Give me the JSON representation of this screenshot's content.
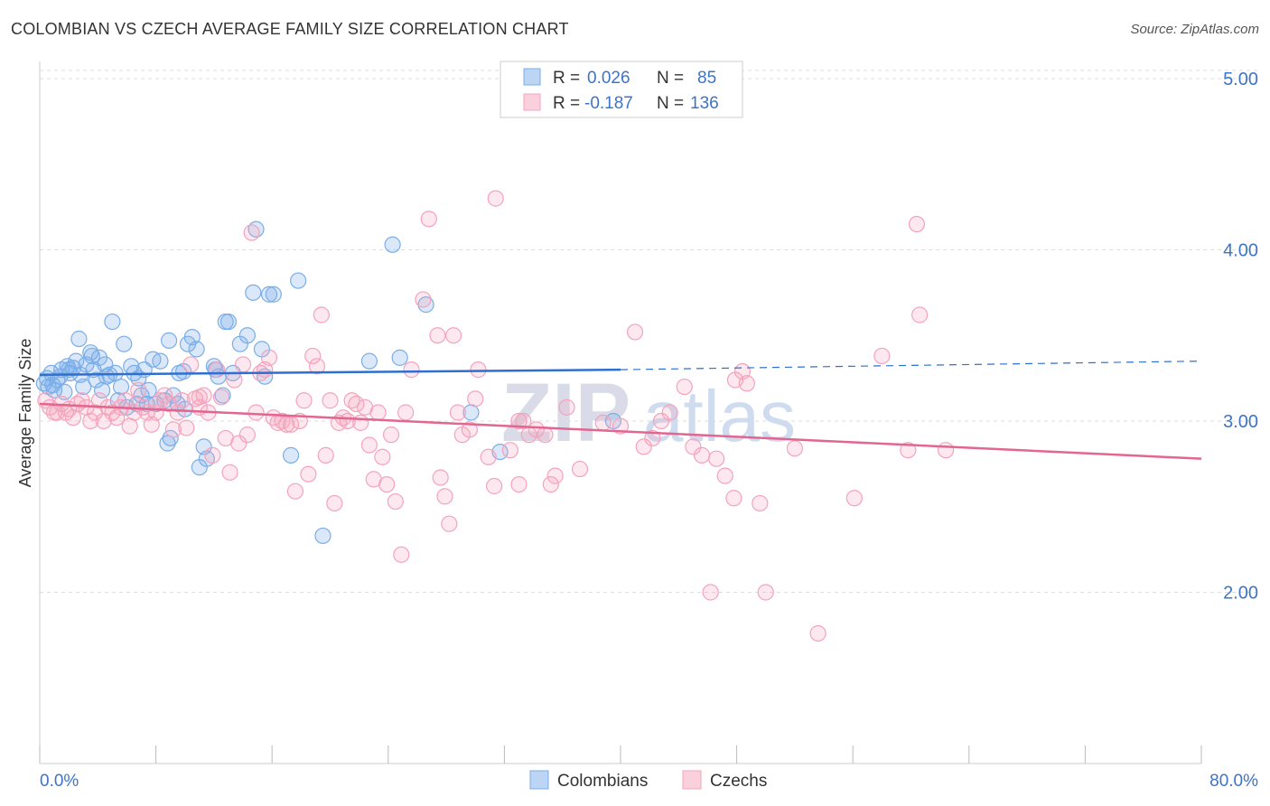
{
  "title": "COLOMBIAN VS CZECH AVERAGE FAMILY SIZE CORRELATION CHART",
  "source": "Source: ZipAtlas.com",
  "chart_data": {
    "type": "scatter",
    "ylabel": "Average Family Size",
    "xlim": [
      0,
      80
    ],
    "ylim": [
      1.0,
      5.1
    ],
    "x_tick_labels": [
      "0.0%",
      "80.0%"
    ],
    "y_ticks": [
      2.0,
      3.0,
      4.0,
      5.0
    ],
    "y_tick_labels": [
      "2.00",
      "3.00",
      "4.00",
      "5.00"
    ],
    "grid": true,
    "watermark": "ZIPatlas",
    "legend_stats": [
      {
        "r_label": "R =",
        "r": "0.026",
        "n_label": "N =",
        "n": "85"
      },
      {
        "r_label": "R =",
        "r": "-0.187",
        "n_label": "N =",
        "n": "136"
      }
    ],
    "series": [
      {
        "name": "Colombians",
        "color": "#7aaee8",
        "line_color": "#2f6fcf",
        "trend": {
          "x0": 0,
          "y0": 3.27,
          "x1": 40,
          "y1": 3.3,
          "dash_to_x": 80,
          "dash_to_y": 3.35
        },
        "points": [
          [
            0.3,
            3.22
          ],
          [
            0.5,
            3.25
          ],
          [
            0.6,
            3.2
          ],
          [
            0.8,
            3.28
          ],
          [
            1.0,
            3.18
          ],
          [
            1.2,
            3.24
          ],
          [
            1.5,
            3.3
          ],
          [
            1.7,
            3.17
          ],
          [
            1.9,
            3.32
          ],
          [
            2.1,
            3.28
          ],
          [
            2.3,
            3.31
          ],
          [
            2.5,
            3.35
          ],
          [
            2.7,
            3.48
          ],
          [
            2.8,
            3.27
          ],
          [
            3.0,
            3.2
          ],
          [
            3.2,
            3.33
          ],
          [
            3.5,
            3.4
          ],
          [
            3.7,
            3.3
          ],
          [
            3.9,
            3.24
          ],
          [
            4.1,
            3.37
          ],
          [
            4.3,
            3.18
          ],
          [
            4.5,
            3.33
          ],
          [
            4.8,
            3.27
          ],
          [
            5.0,
            3.58
          ],
          [
            5.2,
            3.28
          ],
          [
            5.4,
            3.12
          ],
          [
            5.6,
            3.2
          ],
          [
            5.8,
            3.45
          ],
          [
            6.0,
            3.08
          ],
          [
            6.3,
            3.32
          ],
          [
            6.5,
            3.28
          ],
          [
            6.8,
            3.25
          ],
          [
            7.0,
            3.15
          ],
          [
            7.2,
            3.3
          ],
          [
            7.5,
            3.18
          ],
          [
            7.8,
            3.36
          ],
          [
            8.0,
            3.1
          ],
          [
            8.3,
            3.35
          ],
          [
            8.6,
            3.12
          ],
          [
            8.9,
            3.47
          ],
          [
            9.2,
            3.15
          ],
          [
            9.6,
            3.28
          ],
          [
            9.9,
            3.29
          ],
          [
            10.2,
            3.45
          ],
          [
            10.5,
            3.49
          ],
          [
            10.8,
            3.42
          ],
          [
            11.0,
            2.73
          ],
          [
            11.3,
            2.85
          ],
          [
            11.5,
            2.78
          ],
          [
            12.0,
            3.32
          ],
          [
            12.3,
            3.26
          ],
          [
            12.6,
            3.15
          ],
          [
            12.8,
            3.58
          ],
          [
            13.0,
            3.58
          ],
          [
            13.3,
            3.28
          ],
          [
            13.8,
            3.45
          ],
          [
            14.3,
            3.5
          ],
          [
            14.7,
            3.75
          ],
          [
            14.9,
            4.12
          ],
          [
            15.3,
            3.42
          ],
          [
            15.5,
            3.26
          ],
          [
            15.8,
            3.74
          ],
          [
            16.1,
            3.74
          ],
          [
            17.3,
            2.8
          ],
          [
            17.8,
            3.82
          ],
          [
            19.5,
            2.33
          ],
          [
            22.7,
            3.35
          ],
          [
            24.3,
            4.03
          ],
          [
            24.8,
            3.37
          ],
          [
            26.6,
            3.68
          ],
          [
            29.7,
            3.05
          ],
          [
            31.7,
            2.82
          ],
          [
            39.5,
            3.0
          ],
          [
            9.0,
            2.9
          ],
          [
            8.8,
            2.87
          ],
          [
            10.0,
            3.07
          ],
          [
            6.7,
            3.1
          ],
          [
            3.6,
            3.38
          ],
          [
            1.4,
            3.26
          ],
          [
            2.0,
            3.3
          ],
          [
            4.6,
            3.26
          ],
          [
            7.4,
            3.1
          ],
          [
            12.1,
            3.3
          ],
          [
            0.9,
            3.21
          ],
          [
            9.5,
            3.1
          ]
        ]
      },
      {
        "name": "Czechs",
        "color": "#f4a3bd",
        "line_color": "#e2668f",
        "trend": {
          "x0": 0,
          "y0": 3.1,
          "x1": 80,
          "y1": 2.78
        },
        "points": [
          [
            0.4,
            3.12
          ],
          [
            0.7,
            3.08
          ],
          [
            1.0,
            3.05
          ],
          [
            1.2,
            3.05
          ],
          [
            1.5,
            3.1
          ],
          [
            1.8,
            3.05
          ],
          [
            2.0,
            3.07
          ],
          [
            2.3,
            3.02
          ],
          [
            2.6,
            3.1
          ],
          [
            2.9,
            3.12
          ],
          [
            3.2,
            3.08
          ],
          [
            3.5,
            3.0
          ],
          [
            3.8,
            3.05
          ],
          [
            4.1,
            3.12
          ],
          [
            4.4,
            3.0
          ],
          [
            4.7,
            3.08
          ],
          [
            5.0,
            3.05
          ],
          [
            5.3,
            3.02
          ],
          [
            5.6,
            3.08
          ],
          [
            5.9,
            3.12
          ],
          [
            6.2,
            2.97
          ],
          [
            6.5,
            3.05
          ],
          [
            6.8,
            3.18
          ],
          [
            7.1,
            3.08
          ],
          [
            7.4,
            3.05
          ],
          [
            7.7,
            2.98
          ],
          [
            8.0,
            3.05
          ],
          [
            8.3,
            3.12
          ],
          [
            8.6,
            3.15
          ],
          [
            8.9,
            3.1
          ],
          [
            9.2,
            2.95
          ],
          [
            9.5,
            3.05
          ],
          [
            9.8,
            3.12
          ],
          [
            10.1,
            2.96
          ],
          [
            10.4,
            3.33
          ],
          [
            10.7,
            3.13
          ],
          [
            11.0,
            3.08
          ],
          [
            11.3,
            3.15
          ],
          [
            11.6,
            3.05
          ],
          [
            11.9,
            2.8
          ],
          [
            12.2,
            3.3
          ],
          [
            12.5,
            3.14
          ],
          [
            12.8,
            2.9
          ],
          [
            13.1,
            2.7
          ],
          [
            13.4,
            3.24
          ],
          [
            13.7,
            2.87
          ],
          [
            14.0,
            3.33
          ],
          [
            14.3,
            2.92
          ],
          [
            14.6,
            4.1
          ],
          [
            14.9,
            3.05
          ],
          [
            15.2,
            3.28
          ],
          [
            15.5,
            3.3
          ],
          [
            15.8,
            3.37
          ],
          [
            16.1,
            3.02
          ],
          [
            16.4,
            2.99
          ],
          [
            16.7,
            3.0
          ],
          [
            17.0,
            2.98
          ],
          [
            17.3,
            2.98
          ],
          [
            17.6,
            2.59
          ],
          [
            17.9,
            3.0
          ],
          [
            18.2,
            3.12
          ],
          [
            18.5,
            2.69
          ],
          [
            18.8,
            3.38
          ],
          [
            19.1,
            3.32
          ],
          [
            19.4,
            3.62
          ],
          [
            19.7,
            2.8
          ],
          [
            20.0,
            3.12
          ],
          [
            20.3,
            2.52
          ],
          [
            20.6,
            2.99
          ],
          [
            20.9,
            3.02
          ],
          [
            21.2,
            3.0
          ],
          [
            21.5,
            3.12
          ],
          [
            21.8,
            3.1
          ],
          [
            22.1,
            2.99
          ],
          [
            22.4,
            3.08
          ],
          [
            22.7,
            2.86
          ],
          [
            23.0,
            2.66
          ],
          [
            23.3,
            3.05
          ],
          [
            23.6,
            2.79
          ],
          [
            23.9,
            2.63
          ],
          [
            24.2,
            2.92
          ],
          [
            24.5,
            2.53
          ],
          [
            24.9,
            2.22
          ],
          [
            25.2,
            3.05
          ],
          [
            25.6,
            3.3
          ],
          [
            26.4,
            3.71
          ],
          [
            26.8,
            4.18
          ],
          [
            27.4,
            3.5
          ],
          [
            27.6,
            2.67
          ],
          [
            27.9,
            2.56
          ],
          [
            28.2,
            2.4
          ],
          [
            28.5,
            3.5
          ],
          [
            28.8,
            3.05
          ],
          [
            29.1,
            2.92
          ],
          [
            29.6,
            2.95
          ],
          [
            30.0,
            3.13
          ],
          [
            30.2,
            3.3
          ],
          [
            30.9,
            2.79
          ],
          [
            31.3,
            2.62
          ],
          [
            31.4,
            4.3
          ],
          [
            32.4,
            2.83
          ],
          [
            33.0,
            2.63
          ],
          [
            33.3,
            3.0
          ],
          [
            33.7,
            2.92
          ],
          [
            34.2,
            2.95
          ],
          [
            34.8,
            2.92
          ],
          [
            35.2,
            2.63
          ],
          [
            35.5,
            2.68
          ],
          [
            36.3,
            3.08
          ],
          [
            37.2,
            2.72
          ],
          [
            38.8,
            2.99
          ],
          [
            40.0,
            2.97
          ],
          [
            41.0,
            3.52
          ],
          [
            41.6,
            2.85
          ],
          [
            42.2,
            2.9
          ],
          [
            42.8,
            3.0
          ],
          [
            43.4,
            3.05
          ],
          [
            44.4,
            3.2
          ],
          [
            45.0,
            2.85
          ],
          [
            45.6,
            2.8
          ],
          [
            46.2,
            2.0
          ],
          [
            46.6,
            2.78
          ],
          [
            47.2,
            2.68
          ],
          [
            47.8,
            2.55
          ],
          [
            48.4,
            3.29
          ],
          [
            48.7,
            3.22
          ],
          [
            49.6,
            2.52
          ],
          [
            50.0,
            2.0
          ],
          [
            52.0,
            2.84
          ],
          [
            53.6,
            1.76
          ],
          [
            56.1,
            2.55
          ],
          [
            58.0,
            3.38
          ],
          [
            59.8,
            2.83
          ],
          [
            60.4,
            4.15
          ],
          [
            60.6,
            3.62
          ],
          [
            62.4,
            2.83
          ],
          [
            47.9,
            3.24
          ],
          [
            33.0,
            3.0
          ],
          [
            11.0,
            3.14
          ]
        ]
      }
    ]
  }
}
